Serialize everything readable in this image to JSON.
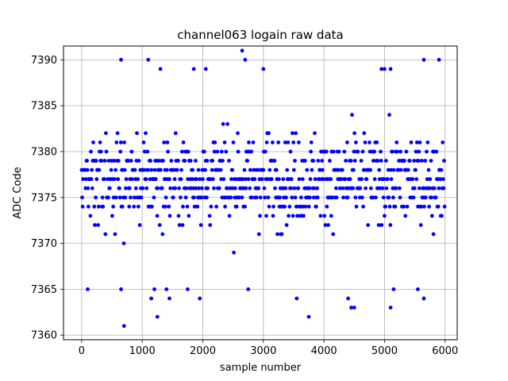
{
  "chart_data": {
    "type": "scatter",
    "title": "channel063 logain raw data",
    "xlabel": "sample number",
    "ylabel": "ADC Code",
    "xlim": [
      -300,
      6200
    ],
    "ylim": [
      7359.5,
      7391.5
    ],
    "xticks": [
      0,
      1000,
      2000,
      3000,
      4000,
      5000,
      6000
    ],
    "yticks": [
      7360,
      7365,
      7370,
      7375,
      7380,
      7385,
      7390
    ],
    "grid": true,
    "marker_color": "#0000ff",
    "sample_count": 6000,
    "core_level_range": [
      7366,
      7388
    ],
    "outliers": [
      {
        "x": 650,
        "y": 7390
      },
      {
        "x": 1100,
        "y": 7390
      },
      {
        "x": 2650,
        "y": 7391
      },
      {
        "x": 2700,
        "y": 7390
      },
      {
        "x": 5650,
        "y": 7390
      },
      {
        "x": 5900,
        "y": 7390
      },
      {
        "x": 700,
        "y": 7361
      },
      {
        "x": 1250,
        "y": 7362
      },
      {
        "x": 3750,
        "y": 7362
      },
      {
        "x": 1300,
        "y": 7389
      },
      {
        "x": 1850,
        "y": 7389
      },
      {
        "x": 2050,
        "y": 7389
      },
      {
        "x": 3000,
        "y": 7389
      },
      {
        "x": 5000,
        "y": 7389
      },
      {
        "x": 5100,
        "y": 7389
      },
      {
        "x": 100,
        "y": 7365
      },
      {
        "x": 650,
        "y": 7365
      },
      {
        "x": 1200,
        "y": 7365
      },
      {
        "x": 1400,
        "y": 7365
      },
      {
        "x": 1750,
        "y": 7365
      },
      {
        "x": 2750,
        "y": 7365
      },
      {
        "x": 1950,
        "y": 7364
      },
      {
        "x": 1150,
        "y": 7364
      },
      {
        "x": 1450,
        "y": 7364
      },
      {
        "x": 3550,
        "y": 7364
      },
      {
        "x": 4400,
        "y": 7364
      },
      {
        "x": 4450,
        "y": 7363
      },
      {
        "x": 4500,
        "y": 7363
      },
      {
        "x": 5100,
        "y": 7363
      },
      {
        "x": 5550,
        "y": 7365
      },
      {
        "x": 5650,
        "y": 7364
      },
      {
        "x": 5150,
        "y": 7365
      },
      {
        "x": 4950,
        "y": 7389
      }
    ]
  }
}
